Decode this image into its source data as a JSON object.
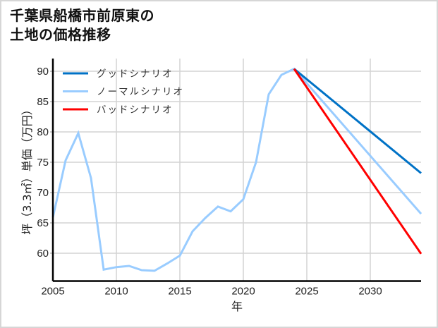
{
  "title": {
    "line1": "千葉県船橋市前原東の",
    "line2": "土地の価格推移"
  },
  "chart_data": {
    "type": "line",
    "title": "千葉県船橋市前原東の土地の価格推移",
    "xlabel": "年",
    "ylabel": "坪（3.3㎡）単価（万円）",
    "xlim": [
      2005,
      2034
    ],
    "ylim": [
      55.4,
      92.1
    ],
    "xticks": [
      2005,
      2010,
      2015,
      2020,
      2025,
      2030
    ],
    "yticks": [
      60,
      65,
      70,
      75,
      80,
      85,
      90
    ],
    "grid": true,
    "legend_position": "upper left",
    "series": [
      {
        "name": "グッドシナリオ",
        "color": "#0072c6",
        "x": [
          2024,
          2034
        ],
        "values": [
          90.4,
          73.2
        ]
      },
      {
        "name": "ノーマルシナリオ",
        "color": "#99ccff",
        "x": [
          2005,
          2006,
          2007,
          2008,
          2009,
          2010,
          2011,
          2012,
          2013,
          2014,
          2015,
          2016,
          2017,
          2018,
          2019,
          2020,
          2021,
          2022,
          2023,
          2024,
          2034
        ],
        "values": [
          65.9,
          75.3,
          79.8,
          72.4,
          57.3,
          57.7,
          57.9,
          57.2,
          57.1,
          58.3,
          59.6,
          63.6,
          65.8,
          67.7,
          66.9,
          68.9,
          75.0,
          86.2,
          89.4,
          90.4,
          66.5
        ]
      },
      {
        "name": "バッドシナリオ",
        "color": "#ff0000",
        "x": [
          2024,
          2034
        ],
        "values": [
          90.4,
          59.9
        ]
      }
    ]
  }
}
